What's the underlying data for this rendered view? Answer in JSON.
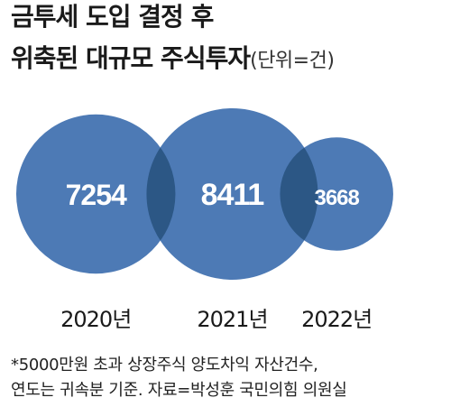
{
  "title_line1": "금투세 도입 결정 후",
  "title_line2": "위축된 대규모 주식투자",
  "unit": "(단위=건)",
  "colors": {
    "bubble": "#4d7ab5",
    "overlap": "#2c5785",
    "value_text": "#ffffff"
  },
  "chart_data": {
    "type": "bubble",
    "title": "금투세 도입 결정 후 위축된 대규모 주식투자",
    "unit": "(단위=건)",
    "categories": [
      "2020년",
      "2021년",
      "2022년"
    ],
    "values": [
      7254,
      8411,
      3668
    ]
  },
  "footnote_line1": "*5000만원 초과 상장주식 양도차익 자산건수,",
  "footnote_line2": " 연도는 귀속분 기준. 자료=박성훈 국민의힘 의원실"
}
